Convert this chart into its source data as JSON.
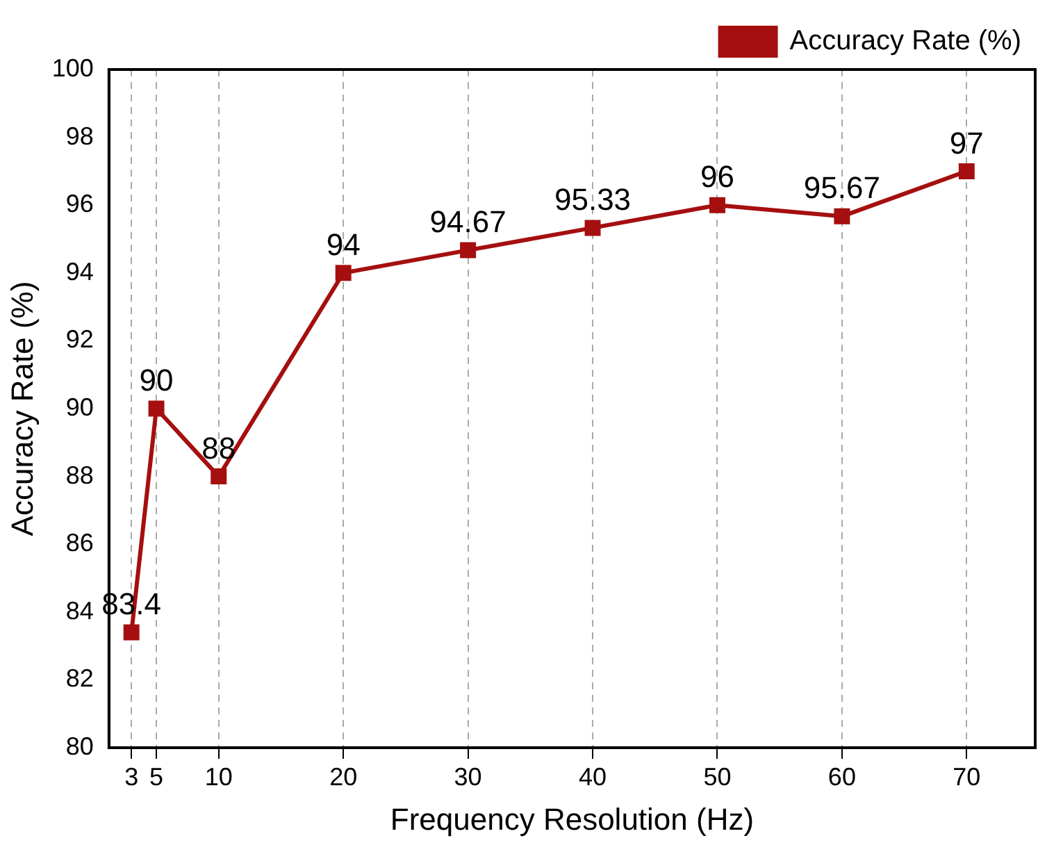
{
  "chart_data": {
    "type": "line",
    "xlabel": "Frequency Resolution (Hz)",
    "ylabel": "Accuracy Rate (%)",
    "x": [
      3,
      5,
      10,
      20,
      30,
      40,
      50,
      60,
      70
    ],
    "series": [
      {
        "name": "Accuracy Rate (%)",
        "color": "#a50f0f",
        "values": [
          83.4,
          90,
          88,
          94,
          94.67,
          95.33,
          96,
          95.67,
          97
        ]
      }
    ],
    "xlim": [
      1.2,
      75.5
    ],
    "xticks": [
      3,
      5,
      10,
      20,
      30,
      40,
      50,
      60,
      70
    ],
    "ylim": [
      80,
      100
    ],
    "yticks": [
      80,
      82,
      84,
      86,
      88,
      90,
      92,
      94,
      96,
      98,
      100
    ],
    "grid": "x",
    "legend": "top right",
    "marker": "square",
    "line_style": "solid",
    "data_labels": true
  }
}
